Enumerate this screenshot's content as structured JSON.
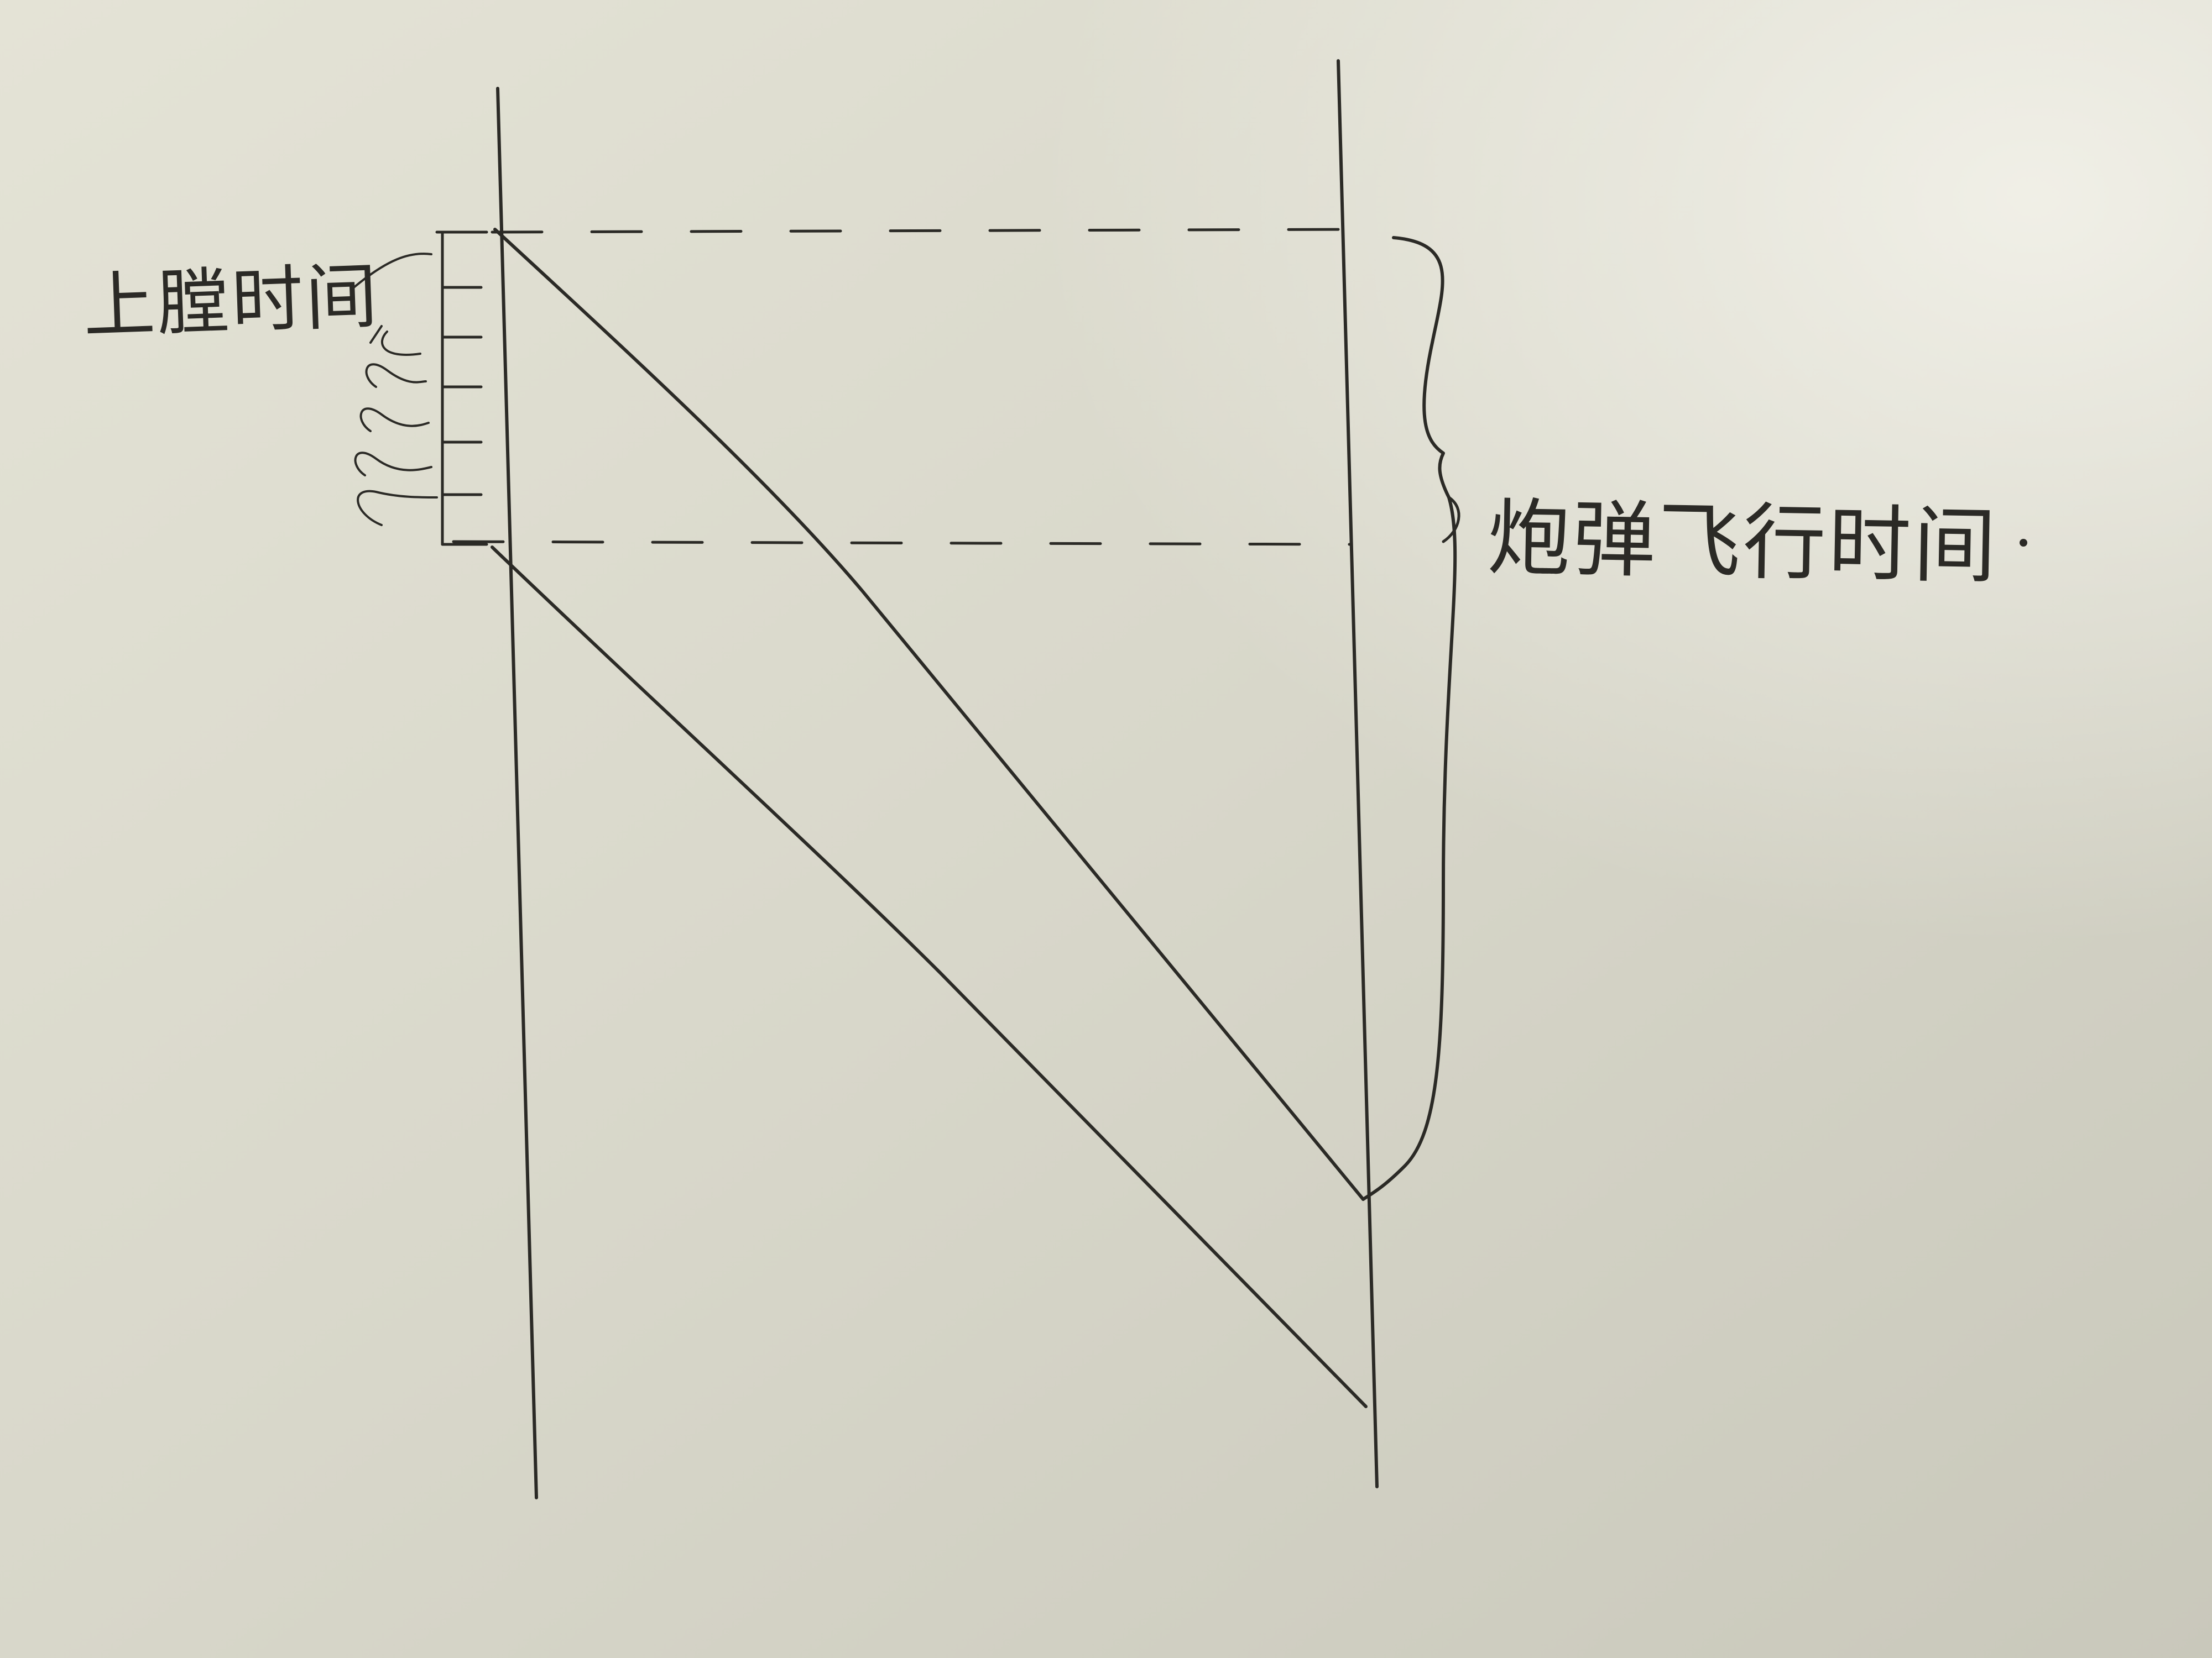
{
  "labels": {
    "loading_time": "上膛时间",
    "flight_time": "炮弹飞行时间"
  },
  "colors": {
    "paper": "#d9d8cc",
    "ink": "#2b2a26"
  }
}
